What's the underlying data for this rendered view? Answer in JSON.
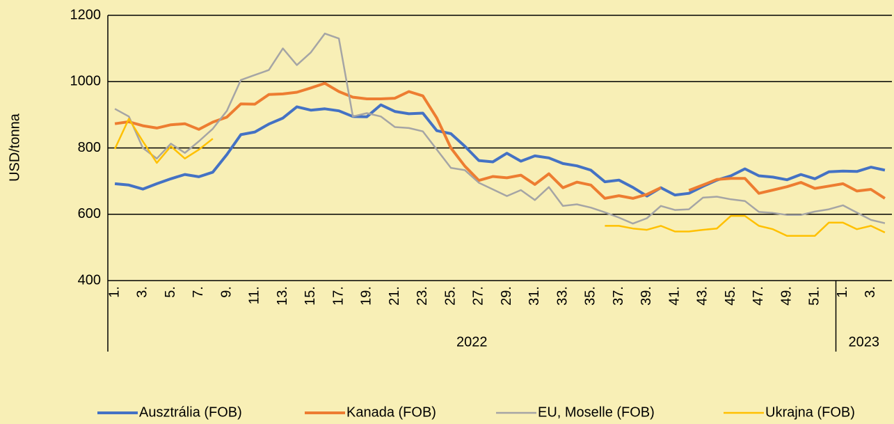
{
  "chart_data": {
    "type": "line",
    "y_label": "USD/tonna",
    "categories": [
      "1.",
      null,
      "3.",
      null,
      "5.",
      null,
      "7.",
      null,
      "9.",
      null,
      "11.",
      null,
      "13.",
      null,
      "15.",
      null,
      "17.",
      null,
      "19.",
      null,
      "21.",
      null,
      "23.",
      null,
      "25.",
      null,
      "27.",
      null,
      "29.",
      null,
      "31.",
      null,
      "33.",
      null,
      "35.",
      null,
      "37.",
      null,
      "39.",
      null,
      "41.",
      null,
      "43.",
      null,
      "45.",
      null,
      "47.",
      null,
      "49.",
      null,
      "51.",
      null,
      "1.",
      null,
      "3.",
      null
    ],
    "groups": [
      {
        "label": "2022",
        "count": 52
      },
      {
        "label": "2023",
        "count": 4
      }
    ],
    "series": [
      {
        "name": "Ausztrália (FOB)",
        "color": "#4472c4",
        "values": [
          692,
          688,
          676,
          692,
          707,
          720,
          713,
          727,
          780,
          840,
          848,
          872,
          890,
          924,
          914,
          918,
          912,
          895,
          894,
          930,
          910,
          903,
          905,
          852,
          843,
          805,
          762,
          758,
          784,
          760,
          776,
          770,
          753,
          746,
          733,
          698,
          703,
          681,
          655,
          680,
          658,
          663,
          684,
          703,
          716,
          737,
          716,
          712,
          704,
          720,
          707,
          728,
          730,
          729,
          742,
          733
        ]
      },
      {
        "name": "Kanada (FOB)",
        "color": "#ed7d31",
        "values": [
          873,
          879,
          867,
          860,
          870,
          873,
          856,
          878,
          893,
          933,
          932,
          961,
          963,
          968,
          981,
          995,
          970,
          953,
          948,
          948,
          950,
          970,
          957,
          890,
          800,
          745,
          702,
          714,
          710,
          718,
          690,
          722,
          680,
          697,
          688,
          648,
          656,
          648,
          660,
          680,
          null,
          672,
          688,
          705,
          708,
          708,
          663,
          673,
          683,
          696,
          678,
          685,
          692,
          670,
          675,
          648
        ]
      },
      {
        "name": "EU, Moselle (FOB)",
        "color": "#a5a5a5",
        "values": [
          918,
          895,
          800,
          768,
          813,
          785,
          820,
          858,
          912,
          1005,
          1020,
          1035,
          1100,
          1050,
          1088,
          1145,
          1130,
          895,
          905,
          895,
          863,
          860,
          850,
          795,
          740,
          733,
          695,
          675,
          655,
          673,
          643,
          682,
          625,
          630,
          620,
          606,
          590,
          572,
          588,
          625,
          613,
          615,
          650,
          653,
          645,
          640,
          607,
          604,
          598,
          598,
          608,
          615,
          627,
          605,
          583,
          573
        ]
      },
      {
        "name": "Ukrajna (FOB)",
        "color": "#ffc000",
        "values": [
          797,
          888,
          820,
          755,
          805,
          768,
          795,
          828,
          null,
          null,
          null,
          null,
          null,
          null,
          null,
          null,
          null,
          null,
          null,
          null,
          null,
          null,
          null,
          null,
          null,
          null,
          null,
          null,
          null,
          null,
          null,
          null,
          null,
          null,
          null,
          565,
          565,
          557,
          553,
          565,
          548,
          548,
          553,
          557,
          595,
          595,
          565,
          555,
          535,
          535,
          535,
          575,
          575,
          555,
          565,
          545
        ]
      }
    ],
    "ylim": [
      400,
      1200
    ],
    "yticks": [
      400,
      600,
      800,
      1000,
      1200
    ],
    "grid": true,
    "legend": "bottom"
  }
}
